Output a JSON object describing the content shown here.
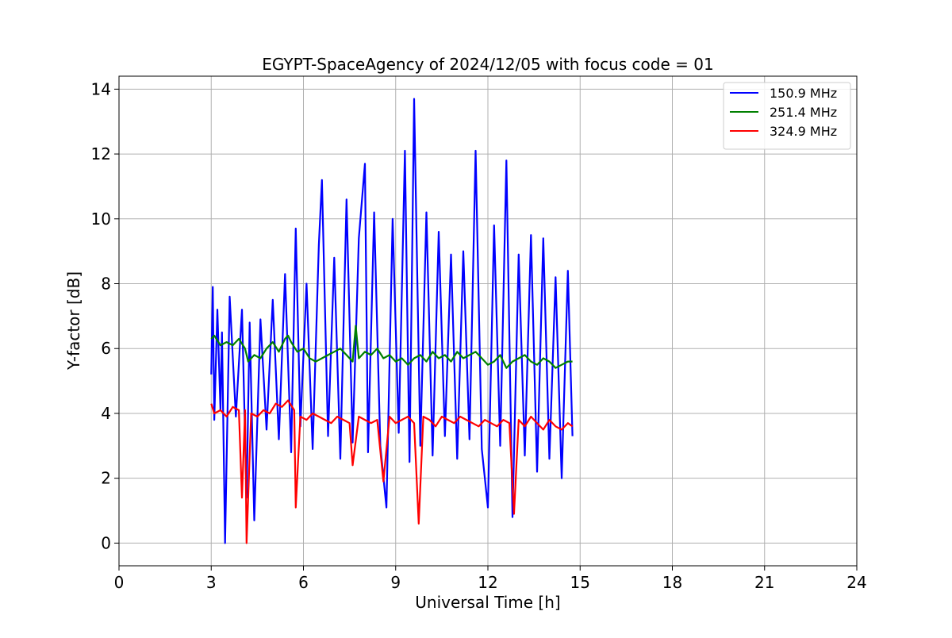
{
  "chart_data": {
    "type": "line",
    "title": "EGYPT-SpaceAgency of 2024/12/05 with focus code = 01",
    "xlabel": "Universal Time [h]",
    "ylabel": "Y-factor [dB]",
    "xlim": [
      0,
      24
    ],
    "ylim": [
      -0.7,
      14.4
    ],
    "xticks": [
      0,
      3,
      6,
      9,
      12,
      15,
      18,
      21,
      24
    ],
    "yticks": [
      0,
      2,
      4,
      6,
      8,
      10,
      12,
      14
    ],
    "xtick_labels": [
      "0",
      "3",
      "6",
      "9",
      "12",
      "15",
      "18",
      "21",
      "24"
    ],
    "ytick_labels": [
      "0",
      "2",
      "4",
      "6",
      "8",
      "10",
      "12",
      "14"
    ],
    "grid": true,
    "legend_position": "top-right",
    "series": [
      {
        "name": "150.9 MHz",
        "color": "#0000ff",
        "x": [
          3.0,
          3.05,
          3.1,
          3.2,
          3.3,
          3.35,
          3.45,
          3.6,
          3.8,
          4.0,
          4.15,
          4.25,
          4.4,
          4.6,
          4.8,
          5.0,
          5.2,
          5.4,
          5.6,
          5.75,
          5.9,
          6.1,
          6.3,
          6.5,
          6.6,
          6.8,
          7.0,
          7.2,
          7.4,
          7.6,
          7.8,
          8.0,
          8.1,
          8.3,
          8.5,
          8.7,
          8.9,
          9.1,
          9.3,
          9.45,
          9.6,
          9.8,
          10.0,
          10.2,
          10.4,
          10.6,
          10.8,
          11.0,
          11.2,
          11.4,
          11.6,
          11.8,
          12.0,
          12.2,
          12.4,
          12.6,
          12.8,
          13.0,
          13.2,
          13.4,
          13.6,
          13.8,
          14.0,
          14.2,
          14.4,
          14.6,
          14.75
        ],
        "values": [
          5.2,
          7.9,
          3.8,
          7.2,
          4.1,
          6.5,
          0.0,
          7.6,
          3.9,
          7.2,
          1.4,
          6.8,
          0.7,
          6.9,
          3.5,
          7.5,
          3.2,
          8.3,
          2.8,
          9.7,
          3.6,
          8.0,
          2.9,
          9.2,
          11.2,
          3.3,
          8.8,
          2.6,
          10.6,
          3.1,
          9.4,
          11.7,
          2.8,
          10.2,
          3.0,
          1.1,
          10.0,
          3.4,
          12.1,
          2.5,
          13.7,
          3.0,
          10.2,
          2.7,
          9.6,
          3.3,
          8.9,
          2.6,
          9.0,
          3.2,
          12.1,
          2.9,
          1.1,
          9.8,
          3.0,
          11.8,
          0.8,
          8.9,
          2.7,
          9.5,
          2.2,
          9.4,
          2.6,
          8.2,
          2.0,
          8.4,
          3.3
        ]
      },
      {
        "name": "251.4 MHz",
        "color": "#008000",
        "x": [
          3.0,
          3.1,
          3.3,
          3.5,
          3.7,
          3.9,
          4.1,
          4.2,
          4.4,
          4.6,
          4.8,
          5.0,
          5.2,
          5.4,
          5.5,
          5.6,
          5.8,
          6.0,
          6.2,
          6.4,
          6.6,
          6.8,
          7.0,
          7.2,
          7.4,
          7.6,
          7.7,
          7.8,
          8.0,
          8.2,
          8.4,
          8.6,
          8.8,
          9.0,
          9.2,
          9.4,
          9.6,
          9.8,
          10.0,
          10.2,
          10.4,
          10.6,
          10.8,
          11.0,
          11.2,
          11.4,
          11.6,
          11.8,
          12.0,
          12.2,
          12.4,
          12.6,
          12.8,
          13.0,
          13.2,
          13.4,
          13.6,
          13.8,
          14.0,
          14.2,
          14.4,
          14.6,
          14.75
        ],
        "values": [
          6.3,
          6.4,
          6.1,
          6.2,
          6.1,
          6.3,
          6.0,
          5.6,
          5.8,
          5.7,
          6.0,
          6.2,
          5.9,
          6.3,
          6.4,
          6.2,
          5.9,
          6.0,
          5.7,
          5.6,
          5.7,
          5.8,
          5.9,
          6.0,
          5.8,
          5.6,
          6.7,
          5.7,
          5.9,
          5.8,
          6.0,
          5.7,
          5.8,
          5.6,
          5.7,
          5.5,
          5.7,
          5.8,
          5.6,
          5.9,
          5.7,
          5.8,
          5.6,
          5.9,
          5.7,
          5.8,
          5.9,
          5.7,
          5.5,
          5.6,
          5.8,
          5.4,
          5.6,
          5.7,
          5.8,
          5.6,
          5.5,
          5.7,
          5.6,
          5.4,
          5.5,
          5.6,
          5.6
        ]
      },
      {
        "name": "324.9 MHz",
        "color": "#ff0000",
        "x": [
          3.0,
          3.1,
          3.3,
          3.5,
          3.7,
          3.9,
          4.0,
          4.1,
          4.15,
          4.3,
          4.5,
          4.7,
          4.9,
          5.1,
          5.3,
          5.5,
          5.7,
          5.75,
          5.9,
          6.1,
          6.3,
          6.5,
          6.7,
          6.9,
          7.1,
          7.3,
          7.5,
          7.6,
          7.8,
          8.0,
          8.2,
          8.4,
          8.6,
          8.8,
          9.0,
          9.2,
          9.4,
          9.6,
          9.75,
          9.9,
          10.1,
          10.3,
          10.5,
          10.7,
          10.9,
          11.1,
          11.3,
          11.5,
          11.7,
          11.9,
          12.1,
          12.3,
          12.5,
          12.7,
          12.85,
          13.0,
          13.2,
          13.4,
          13.6,
          13.8,
          14.0,
          14.2,
          14.4,
          14.6,
          14.75
        ],
        "values": [
          4.3,
          4.0,
          4.1,
          3.9,
          4.2,
          4.1,
          1.4,
          4.1,
          0.0,
          4.0,
          3.9,
          4.1,
          4.0,
          4.3,
          4.2,
          4.4,
          4.1,
          1.1,
          3.9,
          3.8,
          4.0,
          3.9,
          3.8,
          3.7,
          3.9,
          3.8,
          3.7,
          2.4,
          3.9,
          3.8,
          3.7,
          3.8,
          1.9,
          3.9,
          3.7,
          3.8,
          3.9,
          3.7,
          0.6,
          3.9,
          3.8,
          3.6,
          3.9,
          3.8,
          3.7,
          3.9,
          3.8,
          3.7,
          3.6,
          3.8,
          3.7,
          3.6,
          3.8,
          3.7,
          0.9,
          3.8,
          3.6,
          3.9,
          3.7,
          3.5,
          3.8,
          3.6,
          3.5,
          3.7,
          3.6
        ]
      }
    ]
  }
}
